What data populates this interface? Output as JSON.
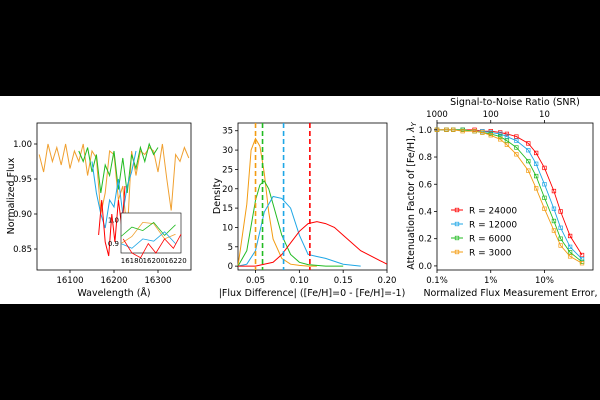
{
  "colors": {
    "r24000": "#ff0000",
    "r12000": "#1fa7e6",
    "r6000": "#22bb22",
    "r3000": "#f39c12",
    "spectrum_orange": "#f0a030"
  },
  "chart_data": [
    {
      "type": "line",
      "title": "",
      "xlabel": "Wavelength (Å)",
      "ylabel": "Normalized Flux",
      "xlim": [
        16025,
        16375
      ],
      "ylim": [
        0.82,
        1.03
      ],
      "xticks": [
        "16100",
        "16200",
        "16300"
      ],
      "yticks": [
        "0.85",
        "0.90",
        "0.95",
        "1.00"
      ],
      "series": [
        {
          "color_key": "spectrum_orange",
          "x": [
            16030,
            16040,
            16050,
            16060,
            16070,
            16080,
            16090,
            16100,
            16110,
            16120,
            16130,
            16140,
            16150,
            16160,
            16170,
            16180,
            16190,
            16200,
            16210,
            16220,
            16230,
            16240,
            16250,
            16260,
            16270,
            16280,
            16290,
            16300,
            16310,
            16320,
            16330,
            16340,
            16350,
            16360,
            16370
          ],
          "y": [
            0.985,
            0.96,
            1.0,
            0.975,
            0.995,
            0.97,
            1.0,
            0.965,
            0.99,
            0.975,
            1.0,
            0.955,
            0.99,
            0.98,
            0.9,
            0.93,
            0.99,
            0.985,
            0.92,
            0.94,
            0.87,
            0.99,
            0.955,
            0.99,
            0.985,
            0.995,
            0.99,
            0.96,
            1.0,
            0.95,
            0.905,
            0.985,
            0.975,
            0.995,
            0.98
          ]
        },
        {
          "color_key": "r6000",
          "x": [
            16120,
            16130,
            16140,
            16150,
            16160,
            16170,
            16180,
            16190,
            16200,
            16210,
            16220,
            16230,
            16240,
            16250,
            16260,
            16270,
            16280,
            16290,
            16300
          ],
          "y": [
            0.99,
            0.975,
            0.995,
            0.96,
            0.985,
            0.93,
            0.97,
            0.955,
            0.99,
            0.935,
            0.98,
            0.93,
            0.985,
            0.965,
            0.995,
            0.975,
            1.0,
            0.985,
            0.995
          ]
        },
        {
          "color_key": "r12000",
          "x": [
            16150,
            16160,
            16170,
            16180,
            16190,
            16200,
            16210,
            16220,
            16230,
            16240,
            16250
          ],
          "y": [
            0.975,
            0.93,
            0.9,
            0.88,
            0.92,
            0.91,
            0.95,
            0.9,
            0.94,
            0.96,
            0.99
          ]
        },
        {
          "color_key": "r24000",
          "x": [
            16165,
            16172,
            16180,
            16188,
            16195,
            16202,
            16210,
            16218,
            16225
          ],
          "y": [
            0.87,
            0.92,
            0.86,
            0.84,
            0.9,
            0.86,
            0.92,
            0.88,
            0.94
          ]
        }
      ],
      "inset": {
        "xlim": [
          16170,
          16225
        ],
        "ylim": [
          0.86,
          1.03
        ],
        "xticks": [
          "16180",
          "16200",
          "16220"
        ],
        "yticks": [
          "0.9",
          "1.0"
        ]
      }
    },
    {
      "type": "area",
      "title": "",
      "xlabel": "|Flux Difference| ([Fe/H]=0 - [Fe/H]=-1)",
      "ylabel": "Density",
      "xlim": [
        0.03,
        0.2
      ],
      "ylim": [
        -1,
        37
      ],
      "xticks": [
        "0.05",
        "0.10",
        "0.15",
        "0.20"
      ],
      "yticks": [
        "0",
        "5",
        "10",
        "15",
        "20",
        "25",
        "30",
        "35"
      ],
      "series": [
        {
          "color_key": "r3000",
          "x": [
            0.03,
            0.04,
            0.045,
            0.05,
            0.055,
            0.06,
            0.065,
            0.07,
            0.08,
            0.09,
            0.1,
            0.11,
            0.12
          ],
          "y": [
            0,
            16,
            30,
            33,
            31,
            24,
            14,
            7,
            2,
            0.5,
            0.2,
            0,
            0
          ],
          "mean": 0.05
        },
        {
          "color_key": "r6000",
          "x": [
            0.03,
            0.04,
            0.05,
            0.055,
            0.06,
            0.065,
            0.07,
            0.08,
            0.09,
            0.1,
            0.11,
            0.13,
            0.15
          ],
          "y": [
            0,
            4,
            17,
            21,
            22,
            20,
            16,
            8,
            3,
            1,
            0.4,
            0,
            0
          ],
          "mean": 0.058
        },
        {
          "color_key": "r12000",
          "x": [
            0.03,
            0.04,
            0.05,
            0.06,
            0.07,
            0.08,
            0.09,
            0.1,
            0.11,
            0.12,
            0.13,
            0.15,
            0.17
          ],
          "y": [
            0,
            0.5,
            4,
            14,
            18,
            17.5,
            15,
            8,
            3,
            2.5,
            2,
            0.5,
            0
          ],
          "mean": 0.082
        },
        {
          "color_key": "r24000",
          "x": [
            0.03,
            0.05,
            0.07,
            0.08,
            0.09,
            0.1,
            0.11,
            0.12,
            0.13,
            0.14,
            0.15,
            0.17,
            0.2
          ],
          "y": [
            0,
            0,
            1,
            3,
            6,
            9,
            11,
            11.5,
            11,
            10,
            8,
            4,
            0.5
          ],
          "mean": 0.112
        }
      ]
    },
    {
      "type": "scatter",
      "title": "",
      "xlabel": "Normalized Flux Measurement Error, σ",
      "ylabel": "Attenuation Factor of [Fe/H], λY",
      "ylabel_main": "Attenuation Factor of [Fe/H], ",
      "ylabel_sym": "λ",
      "ylabel_sub": "Y",
      "top_xlabel": "Signal-to-Noise Ratio (SNR)",
      "xscale": "log",
      "xlim": [
        0.001,
        0.8
      ],
      "ylim": [
        -0.03,
        1.05
      ],
      "xticks": [
        "0.1%",
        "1%",
        "10%"
      ],
      "xtick_values": [
        0.001,
        0.01,
        0.1
      ],
      "yticks": [
        "0.0",
        "0.2",
        "0.4",
        "0.6",
        "0.8",
        "1.0"
      ],
      "top_xticks": [
        "1000",
        "100",
        "10"
      ],
      "legend": [
        "R = 24000",
        "R = 12000",
        "R = 6000",
        "R = 3000"
      ],
      "legend_position": "lower-left",
      "x": [
        0.001,
        0.0015,
        0.002,
        0.003,
        0.005,
        0.007,
        0.01,
        0.015,
        0.02,
        0.03,
        0.05,
        0.07,
        0.1,
        0.15,
        0.2,
        0.3,
        0.5
      ],
      "series": [
        {
          "name": "R = 24000",
          "color_key": "r24000",
          "values": [
            1.0,
            1.0,
            1.0,
            1.0,
            1.0,
            0.99,
            0.99,
            0.98,
            0.97,
            0.95,
            0.9,
            0.83,
            0.72,
            0.55,
            0.4,
            0.22,
            0.08
          ]
        },
        {
          "name": "R = 12000",
          "color_key": "r12000",
          "values": [
            1.0,
            1.0,
            1.0,
            1.0,
            0.99,
            0.99,
            0.98,
            0.97,
            0.95,
            0.92,
            0.85,
            0.75,
            0.6,
            0.42,
            0.28,
            0.14,
            0.05
          ]
        },
        {
          "name": "R = 6000",
          "color_key": "r6000",
          "values": [
            1.0,
            1.0,
            1.0,
            1.0,
            0.99,
            0.98,
            0.97,
            0.95,
            0.92,
            0.87,
            0.77,
            0.66,
            0.5,
            0.33,
            0.2,
            0.1,
            0.03
          ]
        },
        {
          "name": "R = 3000",
          "color_key": "r3000",
          "values": [
            1.0,
            1.0,
            1.0,
            0.99,
            0.99,
            0.98,
            0.96,
            0.93,
            0.89,
            0.82,
            0.7,
            0.57,
            0.42,
            0.26,
            0.15,
            0.07,
            0.02
          ]
        }
      ]
    }
  ]
}
